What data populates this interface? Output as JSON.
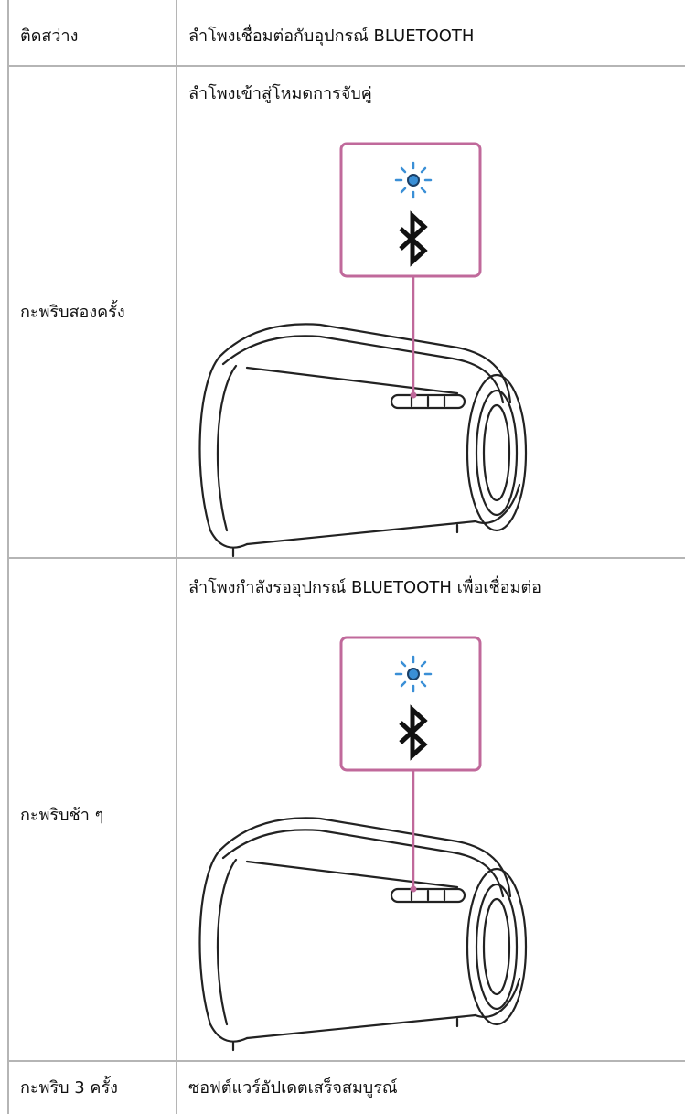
{
  "table": {
    "rows": [
      [
        "ติดสว่าง",
        "ลำโพงเชื่อมต่อกับอุปกรณ์ BLUETOOTH"
      ],
      [
        "กะพริบสองครั้ง",
        "ลำโพงเข้าสู่โหมดการจับคู่"
      ],
      [
        "กะพริบช้า ๆ",
        "ลำโพงกำลังรออุปกรณ์ BLUETOOTH เพื่อเชื่อมต่อ"
      ],
      [
        "กะพริบ 3 ครั้ง",
        "ซอฟต์แวร์อัปเดตเสร็จสมบูรณ์"
      ]
    ]
  }
}
